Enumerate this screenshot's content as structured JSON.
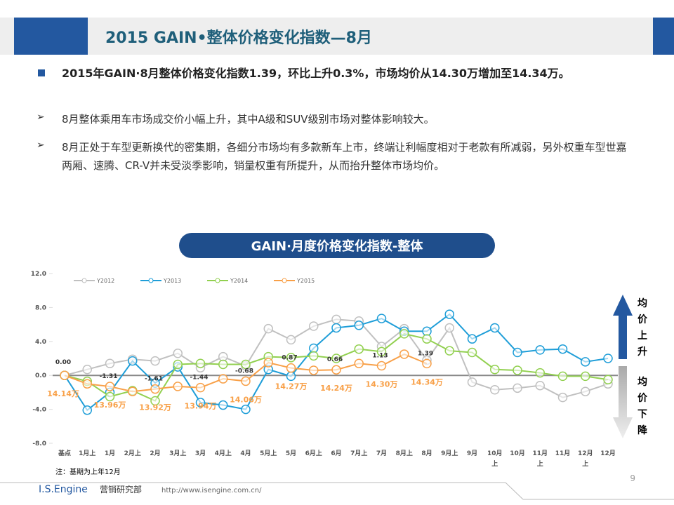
{
  "header": {
    "title": "2015 GAIN•整体价格变化指数—8月"
  },
  "bullets": [
    "2015年GAIN·8月整体价格变化指数1.39，环比上升0.3%，市场均价从14.30万增加至14.34万。",
    "8月整体乘用车市场成交价小幅上升，其中A级和SUV级别市场对整体影响较大。",
    "8月正处于车型更新换代的密集期，各细分市场均有多款新车上市，终端让利幅度相对于老款有所减弱，另外权重车型世嘉 两厢、速腾、CR-V并未受淡季影响，销量权重有所提升，从而抬升整体市场均价。"
  ],
  "side_labels": [
    "均价上升",
    "均价下降"
  ],
  "footnote": "注：基期为上年12月",
  "footer": {
    "brand": "I.S.Engine",
    "dept": "营销研究部",
    "url": "http://www.isengine.com.cn/",
    "page": "9"
  },
  "chart_data": {
    "type": "line",
    "title": "GAIN·月度价格变化指数-整体",
    "categories": [
      "基点",
      "1月上",
      "1月",
      "2月上",
      "2月",
      "3月上",
      "3月",
      "4月上",
      "4月",
      "5月上",
      "5月",
      "6月上",
      "6月",
      "7月上",
      "7月",
      "8月上",
      "8月",
      "9月上",
      "9月",
      "10月上",
      "10月",
      "11月上",
      "11月",
      "12月上",
      "12月"
    ],
    "ylim": [
      -8,
      12
    ],
    "yticks": [
      {
        "value": -8,
        "label": "-8.0"
      },
      {
        "value": -4,
        "label": "-4.0"
      },
      {
        "value": 0,
        "label": "0.0"
      },
      {
        "value": 4,
        "label": "4.0"
      },
      {
        "value": 8,
        "label": "8.0"
      },
      {
        "value": 12,
        "label": "12.0"
      }
    ],
    "legend": "top-left",
    "series": [
      {
        "name": "Y2012",
        "color": "#c0c0c0",
        "values": [
          0,
          0.7,
          1.4,
          1.9,
          1.7,
          2.6,
          0.9,
          2.2,
          1.1,
          5.5,
          4.2,
          5.8,
          6.6,
          6.4,
          3.4,
          5.5,
          1.8,
          5.6,
          -0.8,
          -1.7,
          -1.5,
          -1.2,
          -2.6,
          -1.9,
          -1.0
        ]
      },
      {
        "name": "Y2013",
        "color": "#1f9ed8",
        "values": [
          0,
          -4.1,
          -2.0,
          1.7,
          -0.9,
          1.0,
          -3.2,
          -3.5,
          -4.0,
          0.7,
          -0.1,
          3.2,
          5.6,
          5.9,
          6.7,
          5.2,
          5.2,
          7.2,
          4.3,
          5.6,
          2.7,
          3.0,
          3.1,
          1.6,
          2.0
        ]
      },
      {
        "name": "Y2014",
        "color": "#92d050",
        "values": [
          0,
          -0.7,
          -2.5,
          -1.8,
          -3.0,
          1.3,
          1.4,
          1.3,
          1.3,
          2.2,
          2.1,
          2.3,
          2.0,
          3.1,
          2.8,
          4.9,
          4.3,
          2.9,
          2.7,
          0.7,
          0.6,
          0.3,
          -0.1,
          -0.1,
          -0.5
        ]
      },
      {
        "name": "Y2015",
        "color": "#f8a048",
        "values": [
          0,
          -1.0,
          -1.31,
          -1.9,
          -1.61,
          -1.3,
          -1.44,
          -0.4,
          -0.68,
          1.5,
          0.87,
          0.6,
          0.66,
          1.4,
          1.13,
          2.5,
          1.39,
          null,
          null,
          null,
          null,
          null,
          null,
          null,
          null
        ],
        "value_labels": [
          "0.00",
          null,
          "-1.31",
          null,
          "-1.61",
          null,
          "-1.44",
          null,
          "-0.68",
          null,
          "0.87",
          null,
          "0.66",
          null,
          "1.13",
          null,
          "1.39",
          null,
          null,
          null,
          null,
          null,
          null,
          null,
          null
        ],
        "price_labels": [
          "14.14万",
          null,
          "13.96万",
          null,
          "13.92万",
          null,
          "13.94万",
          null,
          "14.06万",
          null,
          "14.27万",
          null,
          "14.24万",
          null,
          "14.30万",
          null,
          "14.34万",
          null,
          null,
          null,
          null,
          null,
          null,
          null,
          null
        ]
      }
    ]
  }
}
